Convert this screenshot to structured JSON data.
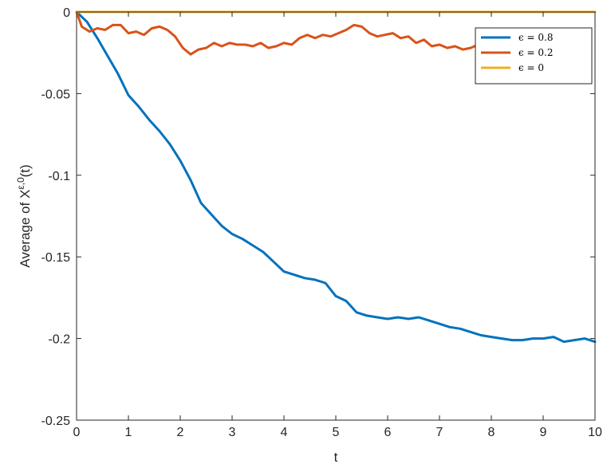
{
  "chart_data": {
    "type": "line",
    "title": "",
    "xlabel": "t",
    "ylabel": {
      "prefix": "Average of X",
      "superscript": "ε,0",
      "suffix": "(t)"
    },
    "xlim": [
      0,
      10
    ],
    "ylim": [
      -0.25,
      0
    ],
    "xticks": [
      "0",
      "1",
      "2",
      "3",
      "4",
      "5",
      "6",
      "7",
      "8",
      "9",
      "10"
    ],
    "yticks": [
      "0",
      "-0.05",
      "-0.1",
      "-0.15",
      "-0.2",
      "-0.25"
    ],
    "grid": false,
    "legend_position": "top-right",
    "series": [
      {
        "name": "ϵ = 0.8",
        "color": "#0072BD",
        "x": [
          0,
          0.2,
          0.4,
          0.6,
          0.8,
          1.0,
          1.2,
          1.4,
          1.6,
          1.8,
          2.0,
          2.2,
          2.4,
          2.6,
          2.8,
          3.0,
          3.2,
          3.4,
          3.6,
          3.8,
          4.0,
          4.2,
          4.4,
          4.6,
          4.8,
          5.0,
          5.2,
          5.4,
          5.6,
          5.8,
          6.0,
          6.2,
          6.4,
          6.6,
          6.8,
          7.0,
          7.2,
          7.4,
          7.6,
          7.8,
          8.0,
          8.2,
          8.4,
          8.6,
          8.8,
          9.0,
          9.2,
          9.4,
          9.6,
          9.8,
          10.0
        ],
        "y": [
          0,
          -0.006,
          -0.016,
          -0.027,
          -0.038,
          -0.051,
          -0.058,
          -0.066,
          -0.073,
          -0.081,
          -0.091,
          -0.103,
          -0.117,
          -0.124,
          -0.131,
          -0.136,
          -0.139,
          -0.143,
          -0.147,
          -0.153,
          -0.159,
          -0.161,
          -0.163,
          -0.164,
          -0.166,
          -0.174,
          -0.177,
          -0.184,
          -0.186,
          -0.187,
          -0.188,
          -0.187,
          -0.188,
          -0.187,
          -0.189,
          -0.191,
          -0.193,
          -0.194,
          -0.196,
          -0.198,
          -0.199,
          -0.2,
          -0.201,
          -0.201,
          -0.2,
          -0.2,
          -0.199,
          -0.202,
          -0.201,
          -0.2,
          -0.202
        ]
      },
      {
        "name": "ϵ = 0.2",
        "color": "#D95319",
        "x": [
          0,
          0.1,
          0.25,
          0.4,
          0.55,
          0.7,
          0.85,
          1.0,
          1.15,
          1.3,
          1.45,
          1.6,
          1.75,
          1.9,
          2.05,
          2.2,
          2.35,
          2.5,
          2.65,
          2.8,
          2.95,
          3.1,
          3.25,
          3.4,
          3.55,
          3.7,
          3.85,
          4.0,
          4.15,
          4.3,
          4.45,
          4.6,
          4.75,
          4.9,
          5.05,
          5.2,
          5.35,
          5.5,
          5.65,
          5.8,
          5.95,
          6.1,
          6.25,
          6.4,
          6.55,
          6.7,
          6.85,
          7.0,
          7.15,
          7.3,
          7.45,
          7.6,
          7.75
        ],
        "y": [
          0,
          -0.009,
          -0.012,
          -0.01,
          -0.011,
          -0.008,
          -0.008,
          -0.013,
          -0.012,
          -0.014,
          -0.01,
          -0.009,
          -0.011,
          -0.015,
          -0.022,
          -0.026,
          -0.023,
          -0.022,
          -0.019,
          -0.021,
          -0.019,
          -0.02,
          -0.02,
          -0.021,
          -0.019,
          -0.022,
          -0.021,
          -0.019,
          -0.02,
          -0.016,
          -0.014,
          -0.016,
          -0.014,
          -0.015,
          -0.013,
          -0.011,
          -0.008,
          -0.009,
          -0.013,
          -0.015,
          -0.014,
          -0.013,
          -0.016,
          -0.015,
          -0.019,
          -0.017,
          -0.021,
          -0.02,
          -0.022,
          -0.021,
          -0.023,
          -0.022,
          -0.02
        ]
      },
      {
        "name": "ϵ = 0",
        "color": "#EDB120",
        "x": [
          0,
          10
        ],
        "y": [
          0,
          0
        ]
      }
    ]
  }
}
